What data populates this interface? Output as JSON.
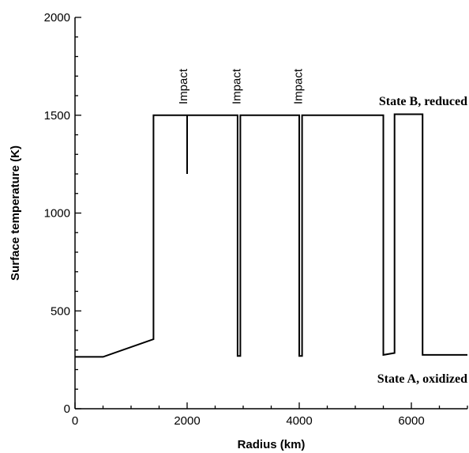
{
  "chart_data": {
    "type": "line",
    "title": "",
    "xlabel": "Radius (km)",
    "ylabel": "Surface temperature (K)",
    "xlim": [
      0,
      7000
    ],
    "ylim": [
      0,
      2000
    ],
    "x_ticks": [
      0,
      2000,
      4000,
      6000
    ],
    "y_ticks": [
      0,
      500,
      1000,
      1500,
      2000
    ],
    "grid": false,
    "series": [
      {
        "color": "#000000",
        "points": [
          [
            0,
            265
          ],
          [
            500,
            265
          ],
          [
            1400,
            355
          ],
          [
            1400,
            1500
          ],
          [
            2000,
            1500
          ],
          [
            2000,
            1200
          ],
          [
            2000,
            1500
          ],
          [
            2900,
            1500
          ],
          [
            2900,
            270
          ],
          [
            2950,
            270
          ],
          [
            2950,
            1500
          ],
          [
            4000,
            1500
          ],
          [
            4000,
            270
          ],
          [
            4050,
            270
          ],
          [
            4050,
            1500
          ],
          [
            5500,
            1500
          ],
          [
            5500,
            275
          ],
          [
            5700,
            285
          ],
          [
            5700,
            1505
          ],
          [
            6200,
            1505
          ],
          [
            6200,
            275
          ],
          [
            7000,
            275
          ]
        ]
      }
    ],
    "annotations": {
      "state_b": "State B, reduced",
      "state_a": "State A, oxidized",
      "impacts": [
        {
          "label": "Impact",
          "x": 2000
        },
        {
          "label": "Impact",
          "x": 2950
        },
        {
          "label": "Impact",
          "x": 4050
        }
      ]
    }
  }
}
